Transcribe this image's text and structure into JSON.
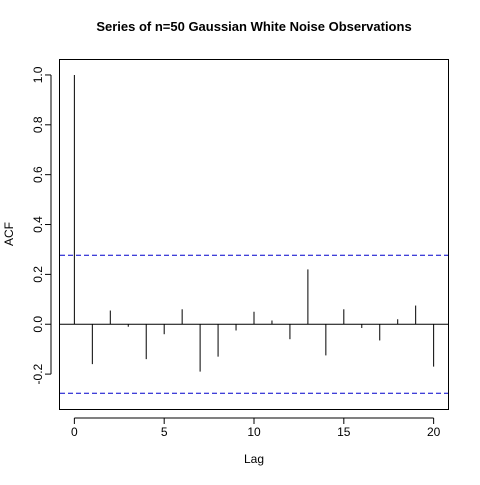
{
  "chart_data": {
    "type": "bar",
    "title": "Series of n=50 Gaussian White Noise Observations",
    "xlabel": "Lag",
    "ylabel": "ACF",
    "x": [
      0,
      1,
      2,
      3,
      4,
      5,
      6,
      7,
      8,
      9,
      10,
      11,
      12,
      13,
      14,
      15,
      16,
      17,
      18,
      19,
      20
    ],
    "values": [
      1.0,
      -0.16,
      0.055,
      -0.01,
      -0.14,
      -0.04,
      0.06,
      -0.19,
      -0.13,
      -0.025,
      0.05,
      0.015,
      -0.06,
      0.22,
      -0.125,
      0.06,
      -0.015,
      -0.065,
      0.02,
      0.075,
      -0.17
    ],
    "xlim": [
      -0.8,
      20.8
    ],
    "ylim": [
      -0.34,
      1.06
    ],
    "xticks": [
      0,
      5,
      10,
      15,
      20
    ],
    "yticks": [
      -0.2,
      0.0,
      0.2,
      0.4,
      0.6,
      0.8,
      1.0
    ],
    "ytick_labels": [
      "-0.2",
      "0.0",
      "0.2",
      "0.4",
      "0.6",
      "0.8",
      "1.0"
    ],
    "confidence_bounds": [
      0.277,
      -0.277
    ],
    "colors": {
      "bars": "#000000",
      "bounds": "#0000CC",
      "zero_line": "#000000"
    },
    "grid": false
  }
}
